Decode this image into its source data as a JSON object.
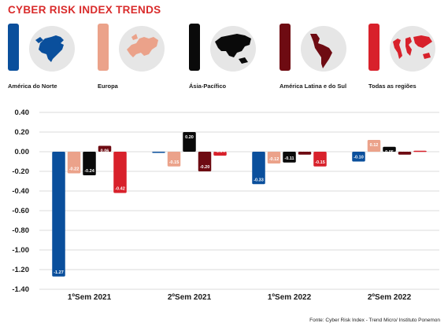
{
  "title": "CYBER RISK INDEX TRENDS",
  "source": "Fonte: Cyber Risk Index - Trend Micro/ Instituto Ponemon",
  "legend": [
    {
      "label": "América do Norte",
      "color": "#0a4f9c",
      "icon": "north-america-map-icon"
    },
    {
      "label": "Europa",
      "color": "#eba28a",
      "icon": "europe-map-icon"
    },
    {
      "label": "Ásia-Pacífico",
      "color": "#0a0a0a",
      "icon": "asia-pacific-map-icon"
    },
    {
      "label": "América Latina e do Sul",
      "color": "#6e0b12",
      "icon": "latin-america-map-icon"
    },
    {
      "label": "Todas as regiões",
      "color": "#d8212b",
      "icon": "world-map-icon"
    }
  ],
  "chart_data": {
    "type": "bar",
    "categories": [
      "1ºSem 2021",
      "2ºSem 2021",
      "1ºSem 2022",
      "2ºSem 2022"
    ],
    "series": [
      {
        "name": "América do Norte",
        "color": "#0a4f9c",
        "values": [
          -1.27,
          -0.01,
          -0.33,
          -0.1
        ],
        "labels": [
          "-1.27",
          "-0.01",
          "-0.33",
          "-0.10"
        ]
      },
      {
        "name": "Europa",
        "color": "#eba28a",
        "values": [
          -0.22,
          -0.15,
          -0.12,
          0.12
        ],
        "labels": [
          "-0.22",
          "-0.15",
          "-0.12",
          "0.12"
        ]
      },
      {
        "name": "Ásia-Pacífico",
        "color": "#0a0a0a",
        "values": [
          -0.24,
          0.2,
          -0.11,
          0.05
        ],
        "labels": [
          "-0.24",
          "0.20",
          "-0.11",
          "0.05"
        ]
      },
      {
        "name": "América Latina e do Sul",
        "color": "#6e0b12",
        "values": [
          0.06,
          -0.2,
          -0.03,
          -0.03
        ],
        "labels": [
          "0.06",
          "-0.20",
          "-0.03",
          "-0.03"
        ]
      },
      {
        "name": "Todas as regiões",
        "color": "#d8212b",
        "values": [
          -0.42,
          -0.04,
          -0.15,
          0.01
        ],
        "labels": [
          "-0.42",
          "-0.04",
          "-0.15",
          "0.01"
        ]
      }
    ],
    "yticks": [
      "0.40",
      "0.20",
      "0.00",
      "-0.20",
      "-0.40",
      "-0.60",
      "-0.80",
      "-1.00",
      "-1.20",
      "-1.40"
    ],
    "ylim": [
      -1.4,
      0.4
    ],
    "grid": true,
    "legend_position": "top"
  }
}
